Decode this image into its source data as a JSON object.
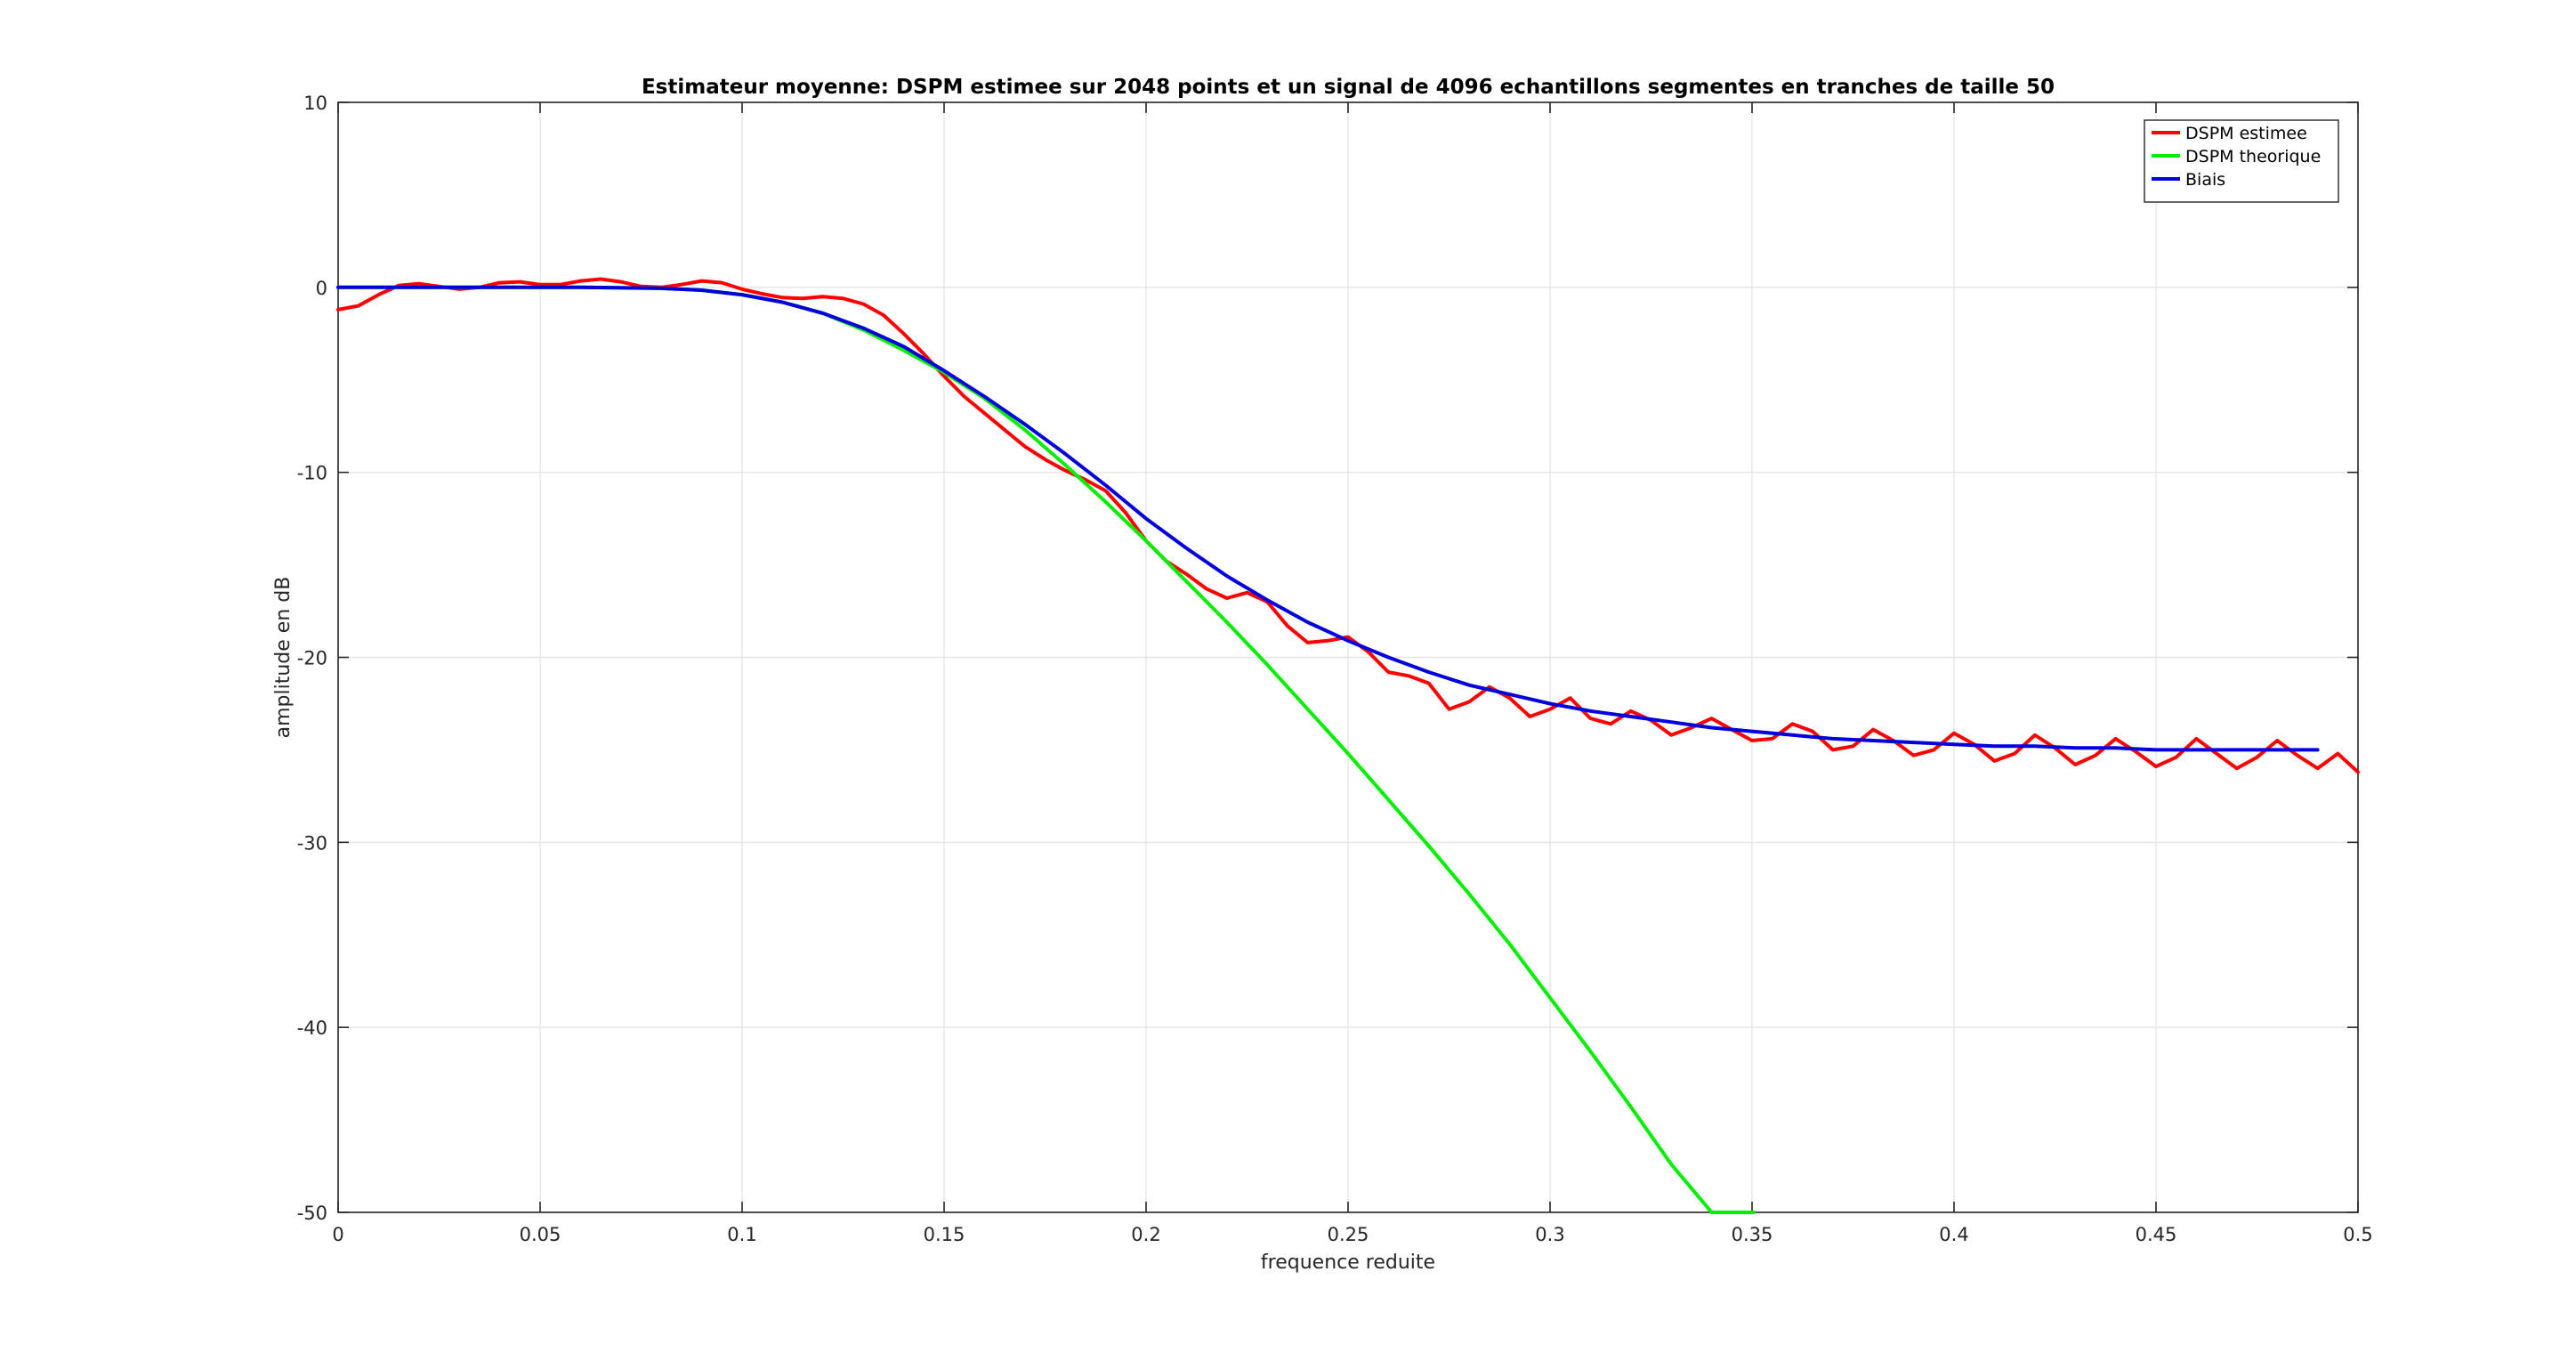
{
  "figure": {
    "background": "#ffffff"
  },
  "chart_data": {
    "type": "line",
    "title": "Estimateur moyenne: DSPM estimee sur 2048 points et un signal de 4096 echantillons segmentes en tranches de taille 50",
    "xlabel": "frequence reduite",
    "ylabel": "amplitude en dB",
    "xlim": [
      0,
      0.5
    ],
    "ylim": [
      -50,
      10
    ],
    "xticks": [
      0,
      0.05,
      0.1,
      0.15,
      0.2,
      0.25,
      0.3,
      0.35,
      0.4,
      0.45,
      0.5
    ],
    "xtick_labels": [
      "0",
      "0.05",
      "0.1",
      "0.15",
      "0.2",
      "0.25",
      "0.3",
      "0.35",
      "0.4",
      "0.45",
      "0.5"
    ],
    "yticks": [
      10,
      0,
      -10,
      -20,
      -30,
      -40,
      -50
    ],
    "ytick_labels": [
      "10",
      "0",
      "-10",
      "-20",
      "-30",
      "-40",
      "-50"
    ],
    "grid": true,
    "legend_position": "top-right",
    "series": [
      {
        "name": "DSPM estimee",
        "color": "#ff0000",
        "x": [
          0,
          0.005,
          0.01,
          0.015,
          0.02,
          0.025,
          0.03,
          0.035,
          0.04,
          0.045,
          0.05,
          0.055,
          0.06,
          0.065,
          0.07,
          0.075,
          0.08,
          0.085,
          0.09,
          0.095,
          0.1,
          0.105,
          0.11,
          0.115,
          0.12,
          0.125,
          0.13,
          0.135,
          0.14,
          0.145,
          0.15,
          0.155,
          0.16,
          0.165,
          0.17,
          0.175,
          0.18,
          0.185,
          0.19,
          0.195,
          0.2,
          0.205,
          0.21,
          0.215,
          0.22,
          0.225,
          0.23,
          0.235,
          0.24,
          0.245,
          0.25,
          0.255,
          0.26,
          0.265,
          0.27,
          0.275,
          0.28,
          0.285,
          0.29,
          0.295,
          0.3,
          0.305,
          0.31,
          0.315,
          0.32,
          0.325,
          0.33,
          0.335,
          0.34,
          0.345,
          0.35,
          0.355,
          0.36,
          0.365,
          0.37,
          0.375,
          0.38,
          0.385,
          0.39,
          0.395,
          0.4,
          0.405,
          0.41,
          0.415,
          0.42,
          0.425,
          0.43,
          0.435,
          0.44,
          0.445,
          0.45,
          0.455,
          0.46,
          0.465,
          0.47,
          0.475,
          0.48,
          0.485,
          0.49,
          0.495,
          0.5
        ],
        "values": [
          -1.2,
          -1.0,
          -0.4,
          0.1,
          0.2,
          0.05,
          -0.1,
          0.0,
          0.25,
          0.3,
          0.15,
          0.15,
          0.35,
          0.45,
          0.3,
          0.05,
          0.0,
          0.15,
          0.35,
          0.25,
          -0.1,
          -0.35,
          -0.55,
          -0.6,
          -0.5,
          -0.6,
          -0.9,
          -1.5,
          -2.5,
          -3.6,
          -4.8,
          -5.9,
          -6.8,
          -7.7,
          -8.6,
          -9.3,
          -9.9,
          -10.4,
          -11.0,
          -12.2,
          -13.7,
          -14.8,
          -15.5,
          -16.3,
          -16.8,
          -16.5,
          -17.0,
          -18.3,
          -19.2,
          -19.1,
          -18.9,
          -19.7,
          -20.8,
          -21.0,
          -21.4,
          -22.8,
          -22.4,
          -21.6,
          -22.2,
          -23.2,
          -22.8,
          -22.2,
          -23.3,
          -23.6,
          -22.9,
          -23.4,
          -24.2,
          -23.8,
          -23.3,
          -23.9,
          -24.5,
          -24.4,
          -23.6,
          -24.0,
          -25.0,
          -24.8,
          -23.9,
          -24.5,
          -25.3,
          -25.0,
          -24.1,
          -24.7,
          -25.6,
          -25.2,
          -24.2,
          -24.9,
          -25.8,
          -25.3,
          -24.4,
          -25.1,
          -25.9,
          -25.4,
          -24.4,
          -25.2,
          -26.0,
          -25.4,
          -24.5,
          -25.3,
          -26.0,
          -25.2,
          -26.2
        ]
      },
      {
        "name": "DSPM theorique",
        "color": "#00ee00",
        "x": [
          0,
          0.02,
          0.04,
          0.06,
          0.08,
          0.09,
          0.1,
          0.11,
          0.12,
          0.13,
          0.14,
          0.15,
          0.16,
          0.17,
          0.18,
          0.19,
          0.2,
          0.21,
          0.22,
          0.23,
          0.24,
          0.25,
          0.26,
          0.27,
          0.28,
          0.29,
          0.3,
          0.31,
          0.32,
          0.33,
          0.34,
          0.35,
          0.3505
        ],
        "values": [
          0,
          0,
          0,
          0,
          -0.05,
          -0.15,
          -0.4,
          -0.8,
          -1.4,
          -2.3,
          -3.4,
          -4.6,
          -6.0,
          -7.7,
          -9.6,
          -11.6,
          -13.7,
          -15.9,
          -18.1,
          -20.4,
          -22.8,
          -25.2,
          -27.7,
          -30.2,
          -32.8,
          -35.5,
          -38.4,
          -41.3,
          -44.3,
          -47.4,
          -50.0,
          -50.0,
          -50.0
        ]
      },
      {
        "name": "Biais",
        "color": "#0000dd",
        "x": [
          0,
          0.02,
          0.04,
          0.06,
          0.08,
          0.09,
          0.1,
          0.11,
          0.12,
          0.13,
          0.14,
          0.15,
          0.16,
          0.17,
          0.18,
          0.19,
          0.2,
          0.21,
          0.22,
          0.23,
          0.24,
          0.25,
          0.26,
          0.27,
          0.28,
          0.29,
          0.3,
          0.31,
          0.32,
          0.33,
          0.34,
          0.35,
          0.36,
          0.37,
          0.38,
          0.39,
          0.4,
          0.41,
          0.42,
          0.43,
          0.44,
          0.45,
          0.46,
          0.47,
          0.48,
          0.49
        ],
        "values": [
          0,
          0,
          0,
          0,
          -0.05,
          -0.15,
          -0.4,
          -0.8,
          -1.4,
          -2.2,
          -3.2,
          -4.5,
          -5.9,
          -7.4,
          -9.0,
          -10.7,
          -12.5,
          -14.1,
          -15.6,
          -16.9,
          -18.1,
          -19.1,
          -20.0,
          -20.8,
          -21.5,
          -22.0,
          -22.5,
          -22.9,
          -23.2,
          -23.5,
          -23.8,
          -24.0,
          -24.2,
          -24.4,
          -24.5,
          -24.6,
          -24.7,
          -24.8,
          -24.8,
          -24.9,
          -24.9,
          -25.0,
          -25.0,
          -25.0,
          -25.0,
          -25.0
        ]
      }
    ]
  }
}
